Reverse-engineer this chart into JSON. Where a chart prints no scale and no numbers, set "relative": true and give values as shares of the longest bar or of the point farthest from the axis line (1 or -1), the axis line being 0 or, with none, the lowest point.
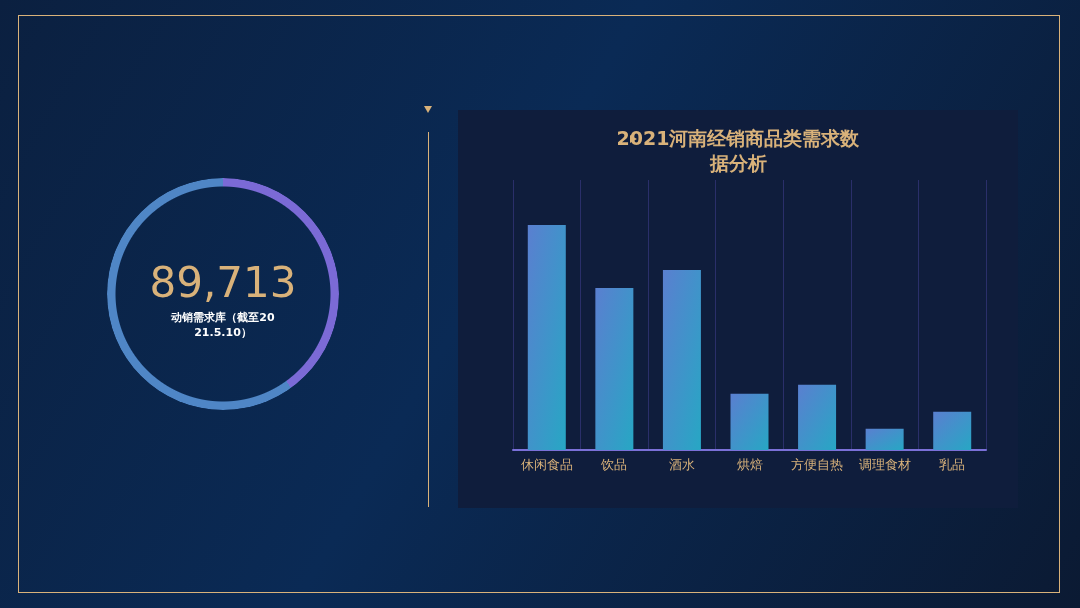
{
  "chart_data": [
    {
      "type": "other",
      "title": "89,713",
      "subtitle": "动销需求库（截至2021.5.10）"
    },
    {
      "type": "bar",
      "title": "2021河南经销商品类需求数据分析",
      "relative": true,
      "categories": [
        "休闲食品",
        "饮品",
        "酒水",
        "烘焙",
        "方便自热",
        "调理食材",
        "乳品"
      ],
      "values": [
        1,
        0.72,
        0.8,
        0.25,
        0.29,
        0.095,
        0.17
      ],
      "color": "#5a7fd0",
      "grid": "x"
    }
  ]
}
